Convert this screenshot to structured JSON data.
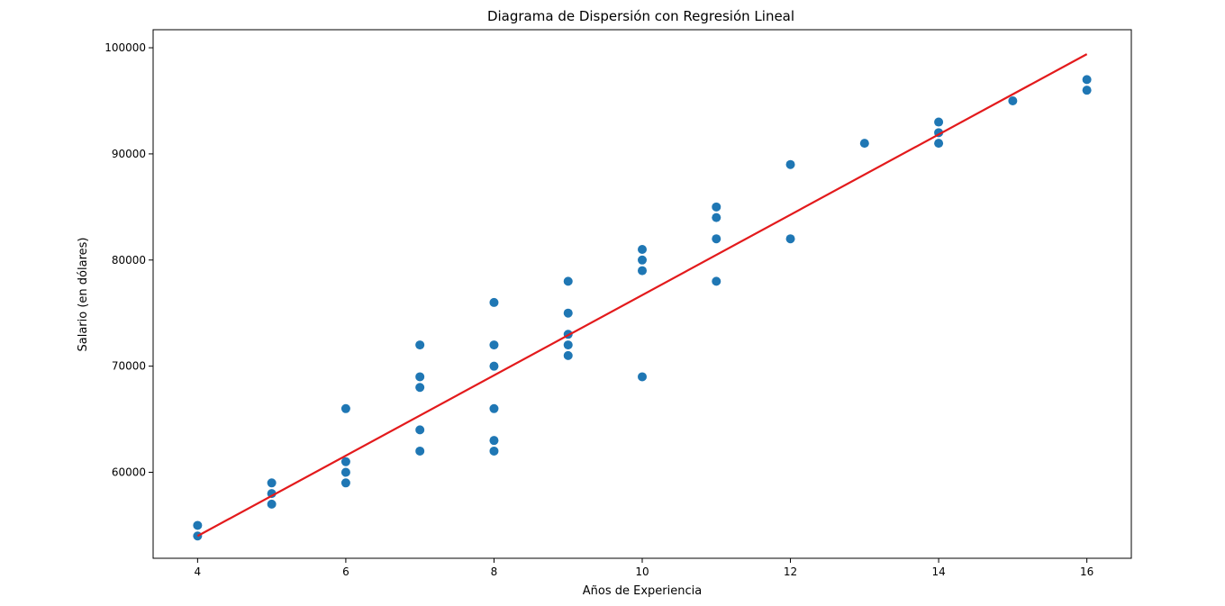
{
  "chart_data": {
    "type": "scatter",
    "title": "Diagrama de Dispersión con Regresión Lineal",
    "xlabel": "Años de Experiencia",
    "ylabel": "Salario (en dólares)",
    "xlim": [
      3.4,
      16.6
    ],
    "ylim": [
      51900,
      101700
    ],
    "xticks": [
      4,
      6,
      8,
      10,
      12,
      14,
      16
    ],
    "yticks": [
      60000,
      70000,
      80000,
      90000,
      100000
    ],
    "grid": false,
    "point_color": "#1f77b4",
    "line_color": "#e31a1c",
    "points": [
      {
        "x": 4,
        "y": 55000
      },
      {
        "x": 4,
        "y": 54000
      },
      {
        "x": 5,
        "y": 59000
      },
      {
        "x": 5,
        "y": 58000
      },
      {
        "x": 5,
        "y": 57000
      },
      {
        "x": 6,
        "y": 66000
      },
      {
        "x": 6,
        "y": 61000
      },
      {
        "x": 6,
        "y": 60000
      },
      {
        "x": 6,
        "y": 59000
      },
      {
        "x": 7,
        "y": 72000
      },
      {
        "x": 7,
        "y": 69000
      },
      {
        "x": 7,
        "y": 68000
      },
      {
        "x": 7,
        "y": 64000
      },
      {
        "x": 7,
        "y": 62000
      },
      {
        "x": 8,
        "y": 76000
      },
      {
        "x": 8,
        "y": 72000
      },
      {
        "x": 8,
        "y": 70000
      },
      {
        "x": 8,
        "y": 66000
      },
      {
        "x": 8,
        "y": 63000
      },
      {
        "x": 8,
        "y": 62000
      },
      {
        "x": 9,
        "y": 78000
      },
      {
        "x": 9,
        "y": 75000
      },
      {
        "x": 9,
        "y": 73000
      },
      {
        "x": 9,
        "y": 72000
      },
      {
        "x": 9,
        "y": 71000
      },
      {
        "x": 10,
        "y": 81000
      },
      {
        "x": 10,
        "y": 80000
      },
      {
        "x": 10,
        "y": 79000
      },
      {
        "x": 10,
        "y": 69000
      },
      {
        "x": 11,
        "y": 85000
      },
      {
        "x": 11,
        "y": 84000
      },
      {
        "x": 11,
        "y": 82000
      },
      {
        "x": 11,
        "y": 78000
      },
      {
        "x": 12,
        "y": 89000
      },
      {
        "x": 12,
        "y": 82000
      },
      {
        "x": 13,
        "y": 91000
      },
      {
        "x": 14,
        "y": 93000
      },
      {
        "x": 14,
        "y": 92000
      },
      {
        "x": 14,
        "y": 91000
      },
      {
        "x": 15,
        "y": 95000
      },
      {
        "x": 16,
        "y": 97000
      },
      {
        "x": 16,
        "y": 96000
      }
    ],
    "regression_line": {
      "x": [
        4,
        16
      ],
      "y": [
        54000,
        99400
      ]
    }
  }
}
